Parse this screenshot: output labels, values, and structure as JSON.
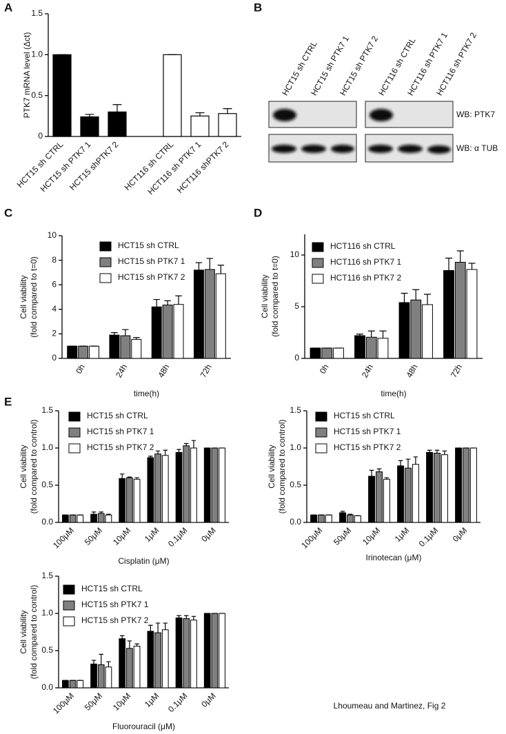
{
  "panel_labels": [
    "A",
    "B",
    "C",
    "D",
    "E"
  ],
  "caption": "Lhoumeau and Martinez, Fig 2",
  "blot": {
    "lanes": [
      "HCT15 sh CTRL",
      "HCT15 sh PTK7 1",
      "HCT15 sh PTK7 2",
      "HCT116 sh CTRL",
      "HCT116 sh PTK7 1",
      "HCT116 sh PTK7 2"
    ],
    "rows": [
      "WB: PTK7",
      "WB:  α TUB"
    ]
  },
  "chart_data": [
    {
      "type": "bar",
      "ylabel": [
        "PTK7 mRNA level (Δct)"
      ],
      "categories": [
        "HCT15 sh CTRL",
        "HCT15 sh PTK7 1",
        "HCT15 shPTK7 2",
        "HCT116 sh CTRL",
        "HCT116 sh PTK7 1",
        "HCT116 shPTK7 2"
      ],
      "values": [
        1.0,
        0.24,
        0.3,
        1.0,
        0.25,
        0.28
      ],
      "errors": [
        0,
        0.03,
        0.09,
        0,
        0.04,
        0.06
      ],
      "colors": [
        "#000000",
        "#000000",
        "#000000",
        "#ffffff",
        "#ffffff",
        "#ffffff"
      ],
      "ylim": [
        0,
        1.5
      ],
      "yticks": [
        0,
        0.5,
        {
          "value": 1,
          "label": "1.0"
        },
        1.5
      ]
    },
    {
      "type": "grouped_bar",
      "xlabel": "time(h)",
      "ylabel": [
        "Cell viability",
        "(fold compared to t=0)"
      ],
      "categories": [
        "0h",
        "24h",
        "48h",
        "72h"
      ],
      "series": [
        {
          "name": "HCT15 sh CTRL",
          "color": "#000000",
          "values": [
            1,
            1.9,
            4.2,
            7.2
          ],
          "errors": [
            0,
            0.2,
            0.6,
            0.6
          ]
        },
        {
          "name": "HCT15 sh PTK7 1",
          "color": "#808080",
          "values": [
            1,
            1.85,
            4.35,
            7.25
          ],
          "errors": [
            0,
            0.5,
            0.35,
            0.9
          ]
        },
        {
          "name": "HCT15 sh PTK7 2",
          "color": "#ffffff",
          "values": [
            1,
            1.55,
            4.4,
            6.9
          ],
          "errors": [
            0,
            0.15,
            0.7,
            0.7
          ]
        }
      ],
      "ylim": [
        0,
        10
      ],
      "yticks": [
        0,
        2,
        4,
        6,
        8,
        10
      ],
      "legend": "top-left"
    },
    {
      "type": "grouped_bar",
      "xlabel": "time(h)",
      "ylabel": [
        "Cell viability",
        "(fold compared to t=0)"
      ],
      "categories": [
        "0h",
        "24h",
        "48h",
        "72h"
      ],
      "series": [
        {
          "name": "HCT116 sh CTRL",
          "color": "#000000",
          "values": [
            1,
            2.2,
            5.4,
            8.5
          ],
          "errors": [
            0,
            0.15,
            0.9,
            1.2
          ]
        },
        {
          "name": "HCT116 sh PTK7 1",
          "color": "#808080",
          "values": [
            1,
            2.05,
            5.65,
            9.3
          ],
          "errors": [
            0,
            0.6,
            1.0,
            1.1
          ]
        },
        {
          "name": "HCT116 sh PTK7 2",
          "color": "#ffffff",
          "values": [
            1,
            1.95,
            5.2,
            8.6
          ],
          "errors": [
            0,
            0.7,
            1.0,
            0.6
          ]
        }
      ],
      "ylim": [
        0,
        12
      ],
      "yticks": [
        0,
        5,
        10
      ],
      "legend": "top-left"
    },
    {
      "type": "grouped_bar",
      "xlabel": "Cisplatin (μM)",
      "ylabel": [
        "Cell viability",
        "(fold compared to control)"
      ],
      "categories": [
        "100μM",
        "50μM",
        "10μM",
        "1μM",
        "0.1μM",
        "0μM"
      ],
      "series": [
        {
          "name": "HCT15 sh CTRL",
          "color": "#000000",
          "values": [
            0.1,
            0.11,
            0.59,
            0.87,
            0.94,
            1.0
          ],
          "errors": [
            0,
            0.03,
            0.06,
            0.02,
            0.04,
            0
          ]
        },
        {
          "name": "HCT15 sh PTK7 1",
          "color": "#808080",
          "values": [
            0.1,
            0.12,
            0.6,
            0.92,
            1.03,
            1.0
          ],
          "errors": [
            0,
            0.02,
            0.01,
            0.04,
            0.03,
            0
          ]
        },
        {
          "name": "HCT15 sh PTK7 2",
          "color": "#ffffff",
          "values": [
            0.1,
            0.1,
            0.58,
            0.9,
            1.0,
            1.0
          ],
          "errors": [
            0,
            0.01,
            0.02,
            0.07,
            0.1,
            0
          ]
        }
      ],
      "ylim": [
        0,
        1.5
      ],
      "yticks": [
        {
          "value": 0,
          "label": "0.0"
        },
        0.5,
        {
          "value": 1,
          "label": "1.0"
        },
        1.5
      ],
      "legend": "top-left"
    },
    {
      "type": "grouped_bar",
      "xlabel": "Irinotecan (μM)",
      "ylabel": [
        "Cell viability",
        "(fold compared to control)"
      ],
      "categories": [
        "100μM",
        "50μM",
        "10μM",
        "1μM",
        "0.1μM",
        "0μM"
      ],
      "series": [
        {
          "name": "HCT15 sh CTRL",
          "color": "#000000",
          "values": [
            0.1,
            0.13,
            0.62,
            0.76,
            0.94,
            1.0
          ],
          "errors": [
            0,
            0.02,
            0.08,
            0.07,
            0.03,
            0
          ]
        },
        {
          "name": "HCT15 sh PTK7 1",
          "color": "#808080",
          "values": [
            0.1,
            0.1,
            0.68,
            0.73,
            0.93,
            1.0
          ],
          "errors": [
            0,
            0.01,
            0.04,
            0.12,
            0.04,
            0
          ]
        },
        {
          "name": "HCT15 sh PTK7 2",
          "color": "#ffffff",
          "values": [
            0.1,
            0.09,
            0.58,
            0.78,
            0.91,
            1.0
          ],
          "errors": [
            0,
            0,
            0.02,
            0.1,
            0.05,
            0
          ]
        }
      ],
      "ylim": [
        0,
        1.5
      ],
      "yticks": [
        {
          "value": 0,
          "label": "0.0"
        },
        0.5,
        {
          "value": 1,
          "label": "1.0"
        },
        1.5
      ],
      "legend": "top-left"
    },
    {
      "type": "grouped_bar",
      "xlabel": "Fluorouracil (μM)",
      "ylabel": [
        "Cell viability",
        "(fold compared to control)"
      ],
      "categories": [
        "100μM",
        "50μM",
        "10μM",
        "1μM",
        "0.1μM",
        "0μM"
      ],
      "series": [
        {
          "name": "HCT15 sh CTRL",
          "color": "#000000",
          "values": [
            0.1,
            0.32,
            0.66,
            0.76,
            0.94,
            1.0
          ],
          "errors": [
            0,
            0.05,
            0.04,
            0.08,
            0.03,
            0
          ]
        },
        {
          "name": "HCT15 sh PTK7 1",
          "color": "#808080",
          "values": [
            0.1,
            0.31,
            0.53,
            0.74,
            0.93,
            1.0
          ],
          "errors": [
            0,
            0.14,
            0.1,
            0.13,
            0.04,
            0
          ]
        },
        {
          "name": "HCT15 sh PTK7 2",
          "color": "#ffffff",
          "values": [
            0.1,
            0.28,
            0.56,
            0.78,
            0.91,
            1.0
          ],
          "errors": [
            0,
            0.07,
            0.03,
            0.09,
            0.05,
            0
          ]
        }
      ],
      "ylim": [
        0,
        1.5
      ],
      "yticks": [
        {
          "value": 0,
          "label": "0.0"
        },
        0.5,
        {
          "value": 1,
          "label": "1.0"
        },
        1.5
      ],
      "legend": "top-left"
    }
  ]
}
